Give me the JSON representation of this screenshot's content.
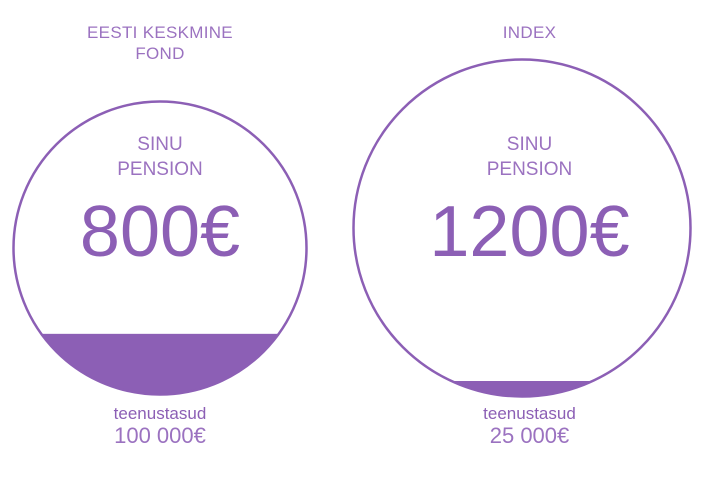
{
  "colors": {
    "accent": "#8c5fb5",
    "text": "#9b72c0",
    "fill": "#8c5fb5",
    "background": "#ffffff"
  },
  "funds": [
    {
      "title": "EESTI KESKMINE\nFOND",
      "pension_label": "SINU\nPENSION",
      "pension_amount": "800€",
      "fee_label": "teenustasud",
      "fee_amount": "100 000€",
      "fee_fill_fraction": 0.21
    },
    {
      "title": "INDEX",
      "pension_label": "SINU\nPENSION",
      "pension_amount": "1200€",
      "fee_label": "teenustasud",
      "fee_amount": "25 000€",
      "fee_fill_fraction": 0.05
    }
  ]
}
